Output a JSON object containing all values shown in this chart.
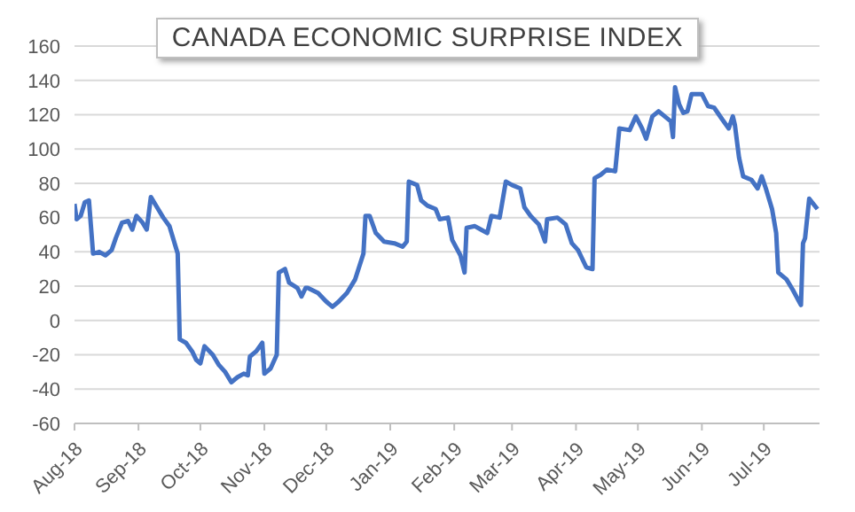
{
  "chart_data": {
    "type": "line",
    "title": "CANADA ECONOMIC SURPRISE INDEX",
    "x": [
      "2018-08-01",
      "2018-08-02",
      "2018-08-04",
      "2018-08-06",
      "2018-08-08",
      "2018-08-10",
      "2018-08-13",
      "2018-08-16",
      "2018-08-19",
      "2018-08-21",
      "2018-08-24",
      "2018-08-27",
      "2018-08-29",
      "2018-08-31",
      "2018-09-03",
      "2018-09-05",
      "2018-09-07",
      "2018-09-10",
      "2018-09-13",
      "2018-09-16",
      "2018-09-19",
      "2018-09-20",
      "2018-09-21",
      "2018-09-24",
      "2018-09-27",
      "2018-09-29",
      "2018-10-01",
      "2018-10-03",
      "2018-10-07",
      "2018-10-10",
      "2018-10-13",
      "2018-10-16",
      "2018-10-19",
      "2018-10-22",
      "2018-10-24",
      "2018-10-25",
      "2018-10-28",
      "2018-10-31",
      "2018-11-01",
      "2018-11-04",
      "2018-11-07",
      "2018-11-08",
      "2018-11-11",
      "2018-11-13",
      "2018-11-17",
      "2018-11-19",
      "2018-11-21",
      "2018-11-22",
      "2018-11-27",
      "2018-12-01",
      "2018-12-04",
      "2018-12-07",
      "2018-12-11",
      "2018-12-15",
      "2018-12-19",
      "2018-12-20",
      "2018-12-22",
      "2018-12-25",
      "2018-12-29",
      "2019-01-03",
      "2019-01-07",
      "2019-01-09",
      "2019-01-10",
      "2019-01-14",
      "2019-01-16",
      "2019-01-19",
      "2019-01-23",
      "2019-01-25",
      "2019-01-29",
      "2019-01-31",
      "2019-02-04",
      "2019-02-06",
      "2019-02-07",
      "2019-02-11",
      "2019-02-14",
      "2019-02-17",
      "2019-02-19",
      "2019-02-23",
      "2019-02-26",
      "2019-03-01",
      "2019-03-05",
      "2019-03-07",
      "2019-03-10",
      "2019-03-14",
      "2019-03-17",
      "2019-03-18",
      "2019-03-23",
      "2019-03-27",
      "2019-03-30",
      "2019-04-02",
      "2019-04-06",
      "2019-04-09",
      "2019-04-10",
      "2019-04-13",
      "2019-04-16",
      "2019-04-20",
      "2019-04-22",
      "2019-04-27",
      "2019-04-30",
      "2019-05-03",
      "2019-05-05",
      "2019-05-08",
      "2019-05-11",
      "2019-05-17",
      "2019-05-18",
      "2019-05-19",
      "2019-05-21",
      "2019-05-23",
      "2019-05-25",
      "2019-05-27",
      "2019-06-01",
      "2019-06-04",
      "2019-06-07",
      "2019-06-11",
      "2019-06-14",
      "2019-06-16",
      "2019-06-17",
      "2019-06-19",
      "2019-06-21",
      "2019-06-25",
      "2019-06-28",
      "2019-06-30",
      "2019-07-02",
      "2019-07-05",
      "2019-07-07",
      "2019-07-08",
      "2019-07-12",
      "2019-07-15",
      "2019-07-19",
      "2019-07-20",
      "2019-07-21",
      "2019-07-23",
      "2019-07-27"
    ],
    "series": [
      {
        "color": "#4472c4",
        "values": [
          68,
          59,
          61,
          69,
          70,
          39,
          40,
          38,
          41,
          48,
          57,
          58,
          53,
          61,
          57,
          53,
          72,
          66,
          60,
          55,
          43,
          39,
          -11,
          -13,
          -18,
          -23,
          -25,
          -15,
          -20,
          -26,
          -30,
          -36,
          -33,
          -31,
          -32,
          -21,
          -18,
          -13,
          -31,
          -28,
          -20,
          28,
          30,
          22,
          19,
          14,
          19,
          19,
          16,
          11,
          8,
          11,
          16,
          24,
          39,
          61,
          61,
          51,
          46,
          45,
          43,
          46,
          81,
          79,
          70,
          67,
          65,
          59,
          60,
          47,
          38,
          28,
          54,
          55,
          53,
          51,
          61,
          60,
          81,
          79,
          77,
          66,
          61,
          56,
          46,
          59,
          60,
          56,
          45,
          41,
          31,
          30,
          83,
          85,
          88,
          87,
          112,
          111,
          119,
          112,
          106,
          119,
          122,
          116,
          107,
          136,
          126,
          121,
          122,
          132,
          132,
          125,
          124,
          117,
          112,
          119,
          114,
          95,
          84,
          82,
          77,
          84,
          77,
          65,
          51,
          28,
          24,
          18,
          9,
          45,
          48,
          71,
          65
        ]
      }
    ],
    "xlim": [
      "2018-08-01",
      "2019-07-28"
    ],
    "xticks": [
      {
        "value": "2018-08-01",
        "label": "Aug-18"
      },
      {
        "value": "2018-09-01",
        "label": "Sep-18"
      },
      {
        "value": "2018-10-01",
        "label": "Oct-18"
      },
      {
        "value": "2018-11-01",
        "label": "Nov-18"
      },
      {
        "value": "2018-12-01",
        "label": "Dec-18"
      },
      {
        "value": "2019-01-01",
        "label": "Jan-19"
      },
      {
        "value": "2019-02-01",
        "label": "Feb-19"
      },
      {
        "value": "2019-03-01",
        "label": "Mar-19"
      },
      {
        "value": "2019-04-01",
        "label": "Apr-19"
      },
      {
        "value": "2019-05-01",
        "label": "May-19"
      },
      {
        "value": "2019-06-01",
        "label": "Jun-19"
      },
      {
        "value": "2019-07-01",
        "label": "Jul-19"
      }
    ],
    "ylim": [
      -60,
      160
    ],
    "yticks": [
      -60,
      -40,
      -20,
      0,
      20,
      40,
      60,
      80,
      100,
      120,
      140,
      160
    ],
    "grid": "y",
    "legend": false,
    "marker": "none",
    "line_style": "solid"
  }
}
